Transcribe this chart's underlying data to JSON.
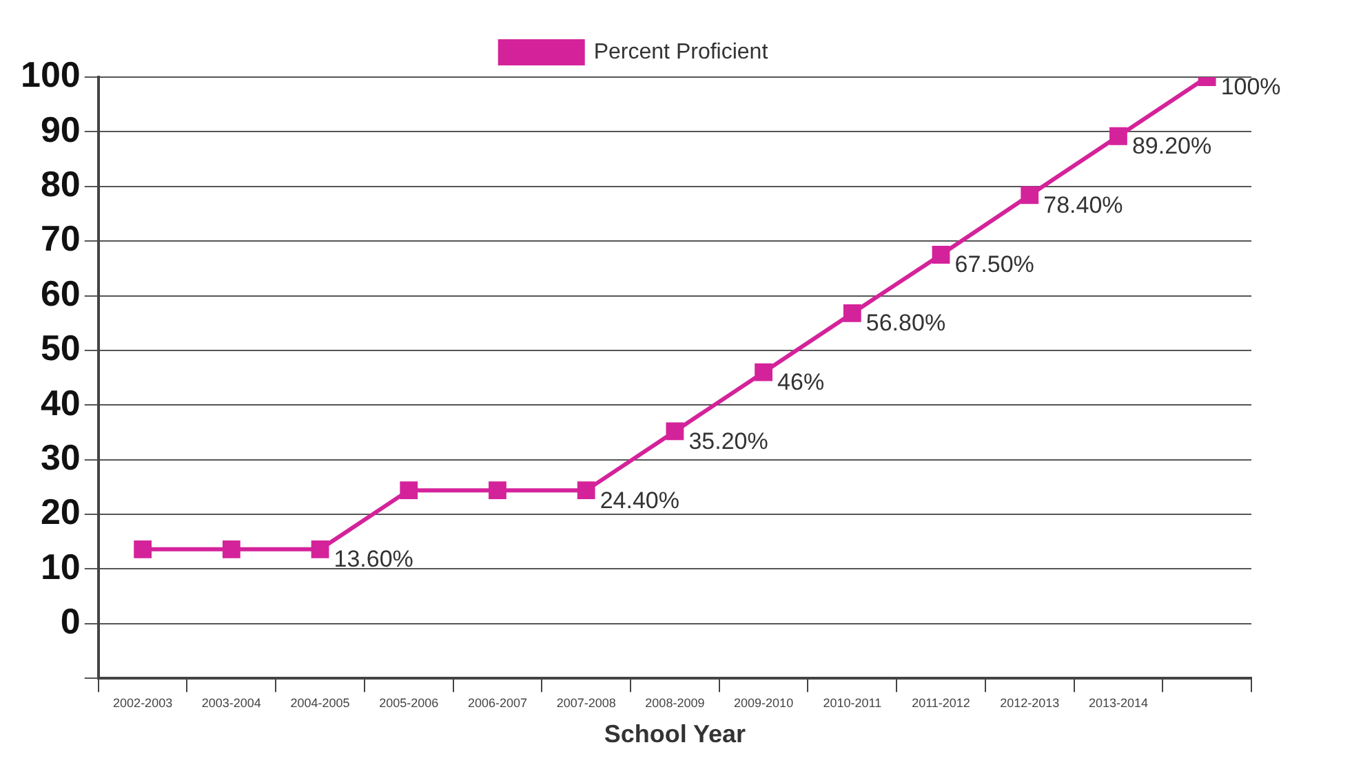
{
  "chart_data": {
    "type": "line",
    "xlabel": "School Year",
    "categories": [
      "2002-2003",
      "2003-2004",
      "2004-2005",
      "2005-2006",
      "2006-2007",
      "2007-2008",
      "2008-2009",
      "2009-2010",
      "2010-2011",
      "2011-2012",
      "2012-2013",
      "2013-2014",
      null
    ],
    "series": [
      {
        "name": "Percent Proficient",
        "color": "#d4239a",
        "values": [
          13.6,
          13.6,
          13.6,
          24.4,
          24.4,
          24.4,
          35.2,
          46,
          56.8,
          67.5,
          78.4,
          89.2,
          100
        ],
        "value_labels": [
          null,
          null,
          "13.60%",
          null,
          null,
          "24.40%",
          "35.20%",
          "46%",
          "56.80%",
          "67.50%",
          "78.40%",
          "89.20%",
          "100%"
        ]
      }
    ],
    "ylim": [
      -10,
      100
    ],
    "yticks": [
      {
        "value": -10,
        "label": null
      },
      0,
      10,
      20,
      30,
      40,
      50,
      60,
      70,
      80,
      90,
      100
    ],
    "grid": "y",
    "legend": "top",
    "marker": "square",
    "line_style": "solid"
  }
}
